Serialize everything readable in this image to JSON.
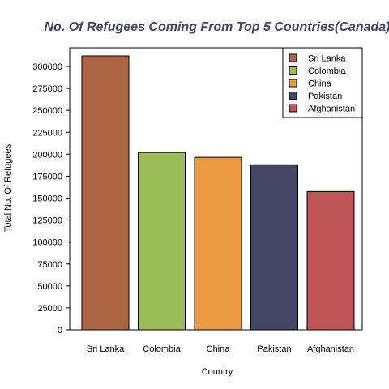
{
  "chart_data": {
    "type": "bar",
    "title": "No. Of Refugees Coming From Top 5 Countries(Canada)",
    "xlabel": "Country",
    "ylabel": "Total No. Of Refugees",
    "categories": [
      "Sri Lanka",
      "Colombia",
      "China",
      "Pakistan",
      "Afghanistan"
    ],
    "values": [
      312000,
      202000,
      196500,
      188000,
      157500
    ],
    "colors": [
      "#ad6644",
      "#9cbd55",
      "#ee9b46",
      "#454666",
      "#bf5557"
    ],
    "ylim": [
      0,
      310000
    ],
    "yticks": [
      "0",
      "25000",
      "50000",
      "75000",
      "100000",
      "125000",
      "150000",
      "175000",
      "200000",
      "225000",
      "250000",
      "275000",
      "300000"
    ],
    "legend": {
      "placement": "top-right",
      "entries": [
        "Sri Lanka",
        "Colombia",
        "China",
        "Pakistan",
        "Afghanistan"
      ]
    },
    "grid": false
  }
}
